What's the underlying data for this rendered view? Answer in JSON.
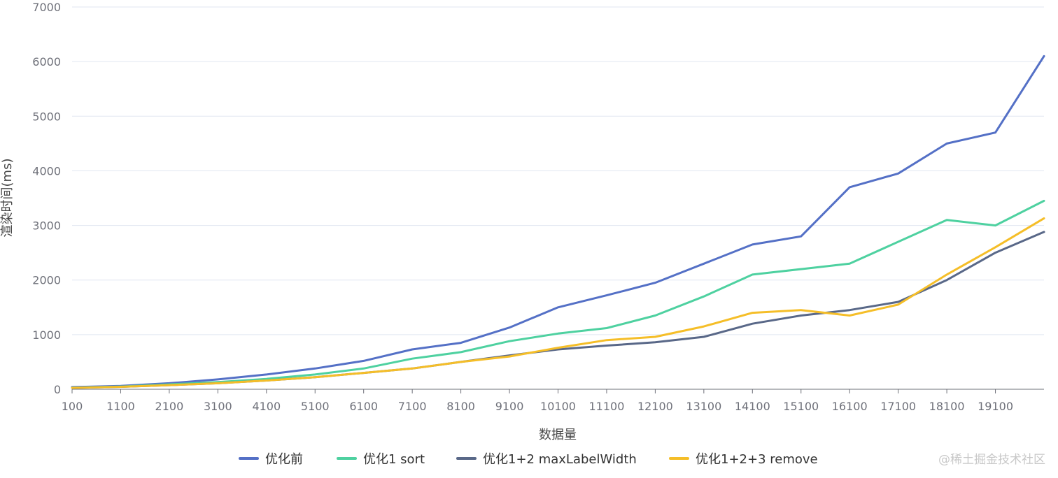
{
  "chart_data": {
    "type": "line",
    "title": "",
    "xlabel": "数据量",
    "ylabel": "渲染时间(ms)",
    "ylim": [
      0,
      7000
    ],
    "yticks": [
      "0",
      "1000",
      "2000",
      "3000",
      "4000",
      "5000",
      "6000",
      "7000"
    ],
    "xlim": [
      100,
      20100
    ],
    "xticks": [
      "100",
      "1100",
      "2100",
      "3100",
      "4100",
      "5100",
      "6100",
      "7100",
      "8100",
      "9100",
      "10100",
      "11100",
      "12100",
      "13100",
      "14100",
      "15100",
      "16100",
      "17100",
      "18100",
      "19100"
    ],
    "legend_position": "bottom",
    "x": [
      100,
      1100,
      2100,
      3100,
      4100,
      5100,
      6100,
      7100,
      8100,
      9100,
      10100,
      11100,
      12100,
      13100,
      14100,
      15100,
      16100,
      17100,
      18100,
      19100,
      20100
    ],
    "series": [
      {
        "name": "优化前",
        "color": "#5470c6",
        "values": [
          40,
          60,
          110,
          180,
          270,
          380,
          520,
          730,
          850,
          1130,
          1500,
          1720,
          1950,
          2300,
          2650,
          2800,
          3700,
          3950,
          4500,
          4700,
          6100
        ]
      },
      {
        "name": "优化1 sort",
        "color": "#4ed1a0",
        "values": [
          30,
          50,
          90,
          130,
          190,
          270,
          380,
          560,
          680,
          880,
          1020,
          1120,
          1350,
          1700,
          2100,
          2200,
          2300,
          2700,
          3100,
          3000,
          3450
        ]
      },
      {
        "name": "优化1+2 maxLabelWidth",
        "color": "#596888",
        "values": [
          25,
          45,
          75,
          110,
          160,
          220,
          300,
          380,
          500,
          620,
          730,
          800,
          860,
          960,
          1200,
          1350,
          1450,
          1600,
          2000,
          2500,
          2880
        ]
      },
      {
        "name": "优化1+2+3 remove",
        "color": "#f5be28",
        "values": [
          25,
          45,
          75,
          110,
          160,
          220,
          300,
          380,
          500,
          600,
          760,
          900,
          960,
          1150,
          1400,
          1450,
          1350,
          1550,
          2100,
          2600,
          3130
        ]
      }
    ],
    "watermark": "@稀土掘金技术社区"
  }
}
